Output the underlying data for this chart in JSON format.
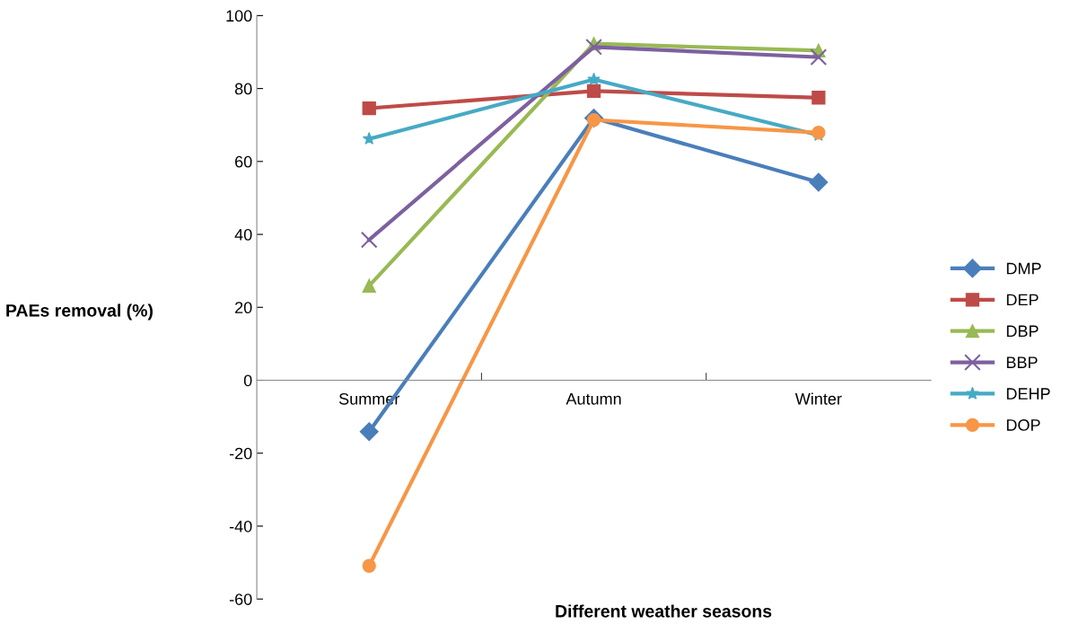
{
  "chart_data": {
    "type": "line",
    "xlabel": "Different weather seasons",
    "ylabel": "PAEs removal (%)",
    "categories": [
      "Summer",
      "Autumn",
      "Winter"
    ],
    "series": [
      {
        "name": "DMP",
        "color": "#4a7ebb",
        "marker": "diamond",
        "values": [
          -14.1,
          71.9,
          54.3
        ]
      },
      {
        "name": "DEP",
        "color": "#be4b48",
        "marker": "square",
        "values": [
          74.6,
          79.3,
          77.5
        ]
      },
      {
        "name": "DBP",
        "color": "#98b954",
        "marker": "triangle",
        "values": [
          25.9,
          92.3,
          90.4
        ]
      },
      {
        "name": "BBP",
        "color": "#7d60a0",
        "marker": "cross",
        "values": [
          38.5,
          91.4,
          88.6
        ]
      },
      {
        "name": "DEHP",
        "color": "#46aac5",
        "marker": "star",
        "values": [
          66.2,
          82.5,
          67.2
        ]
      },
      {
        "name": "DOP",
        "color": "#f79646",
        "marker": "circle",
        "values": [
          -50.9,
          71.4,
          67.9
        ]
      }
    ],
    "ylim": [
      -60,
      100
    ],
    "yticks": [
      -60,
      -40,
      -20,
      0,
      20,
      40,
      60,
      80,
      100
    ],
    "grid": false,
    "legend": "right",
    "line_style": "solid"
  }
}
